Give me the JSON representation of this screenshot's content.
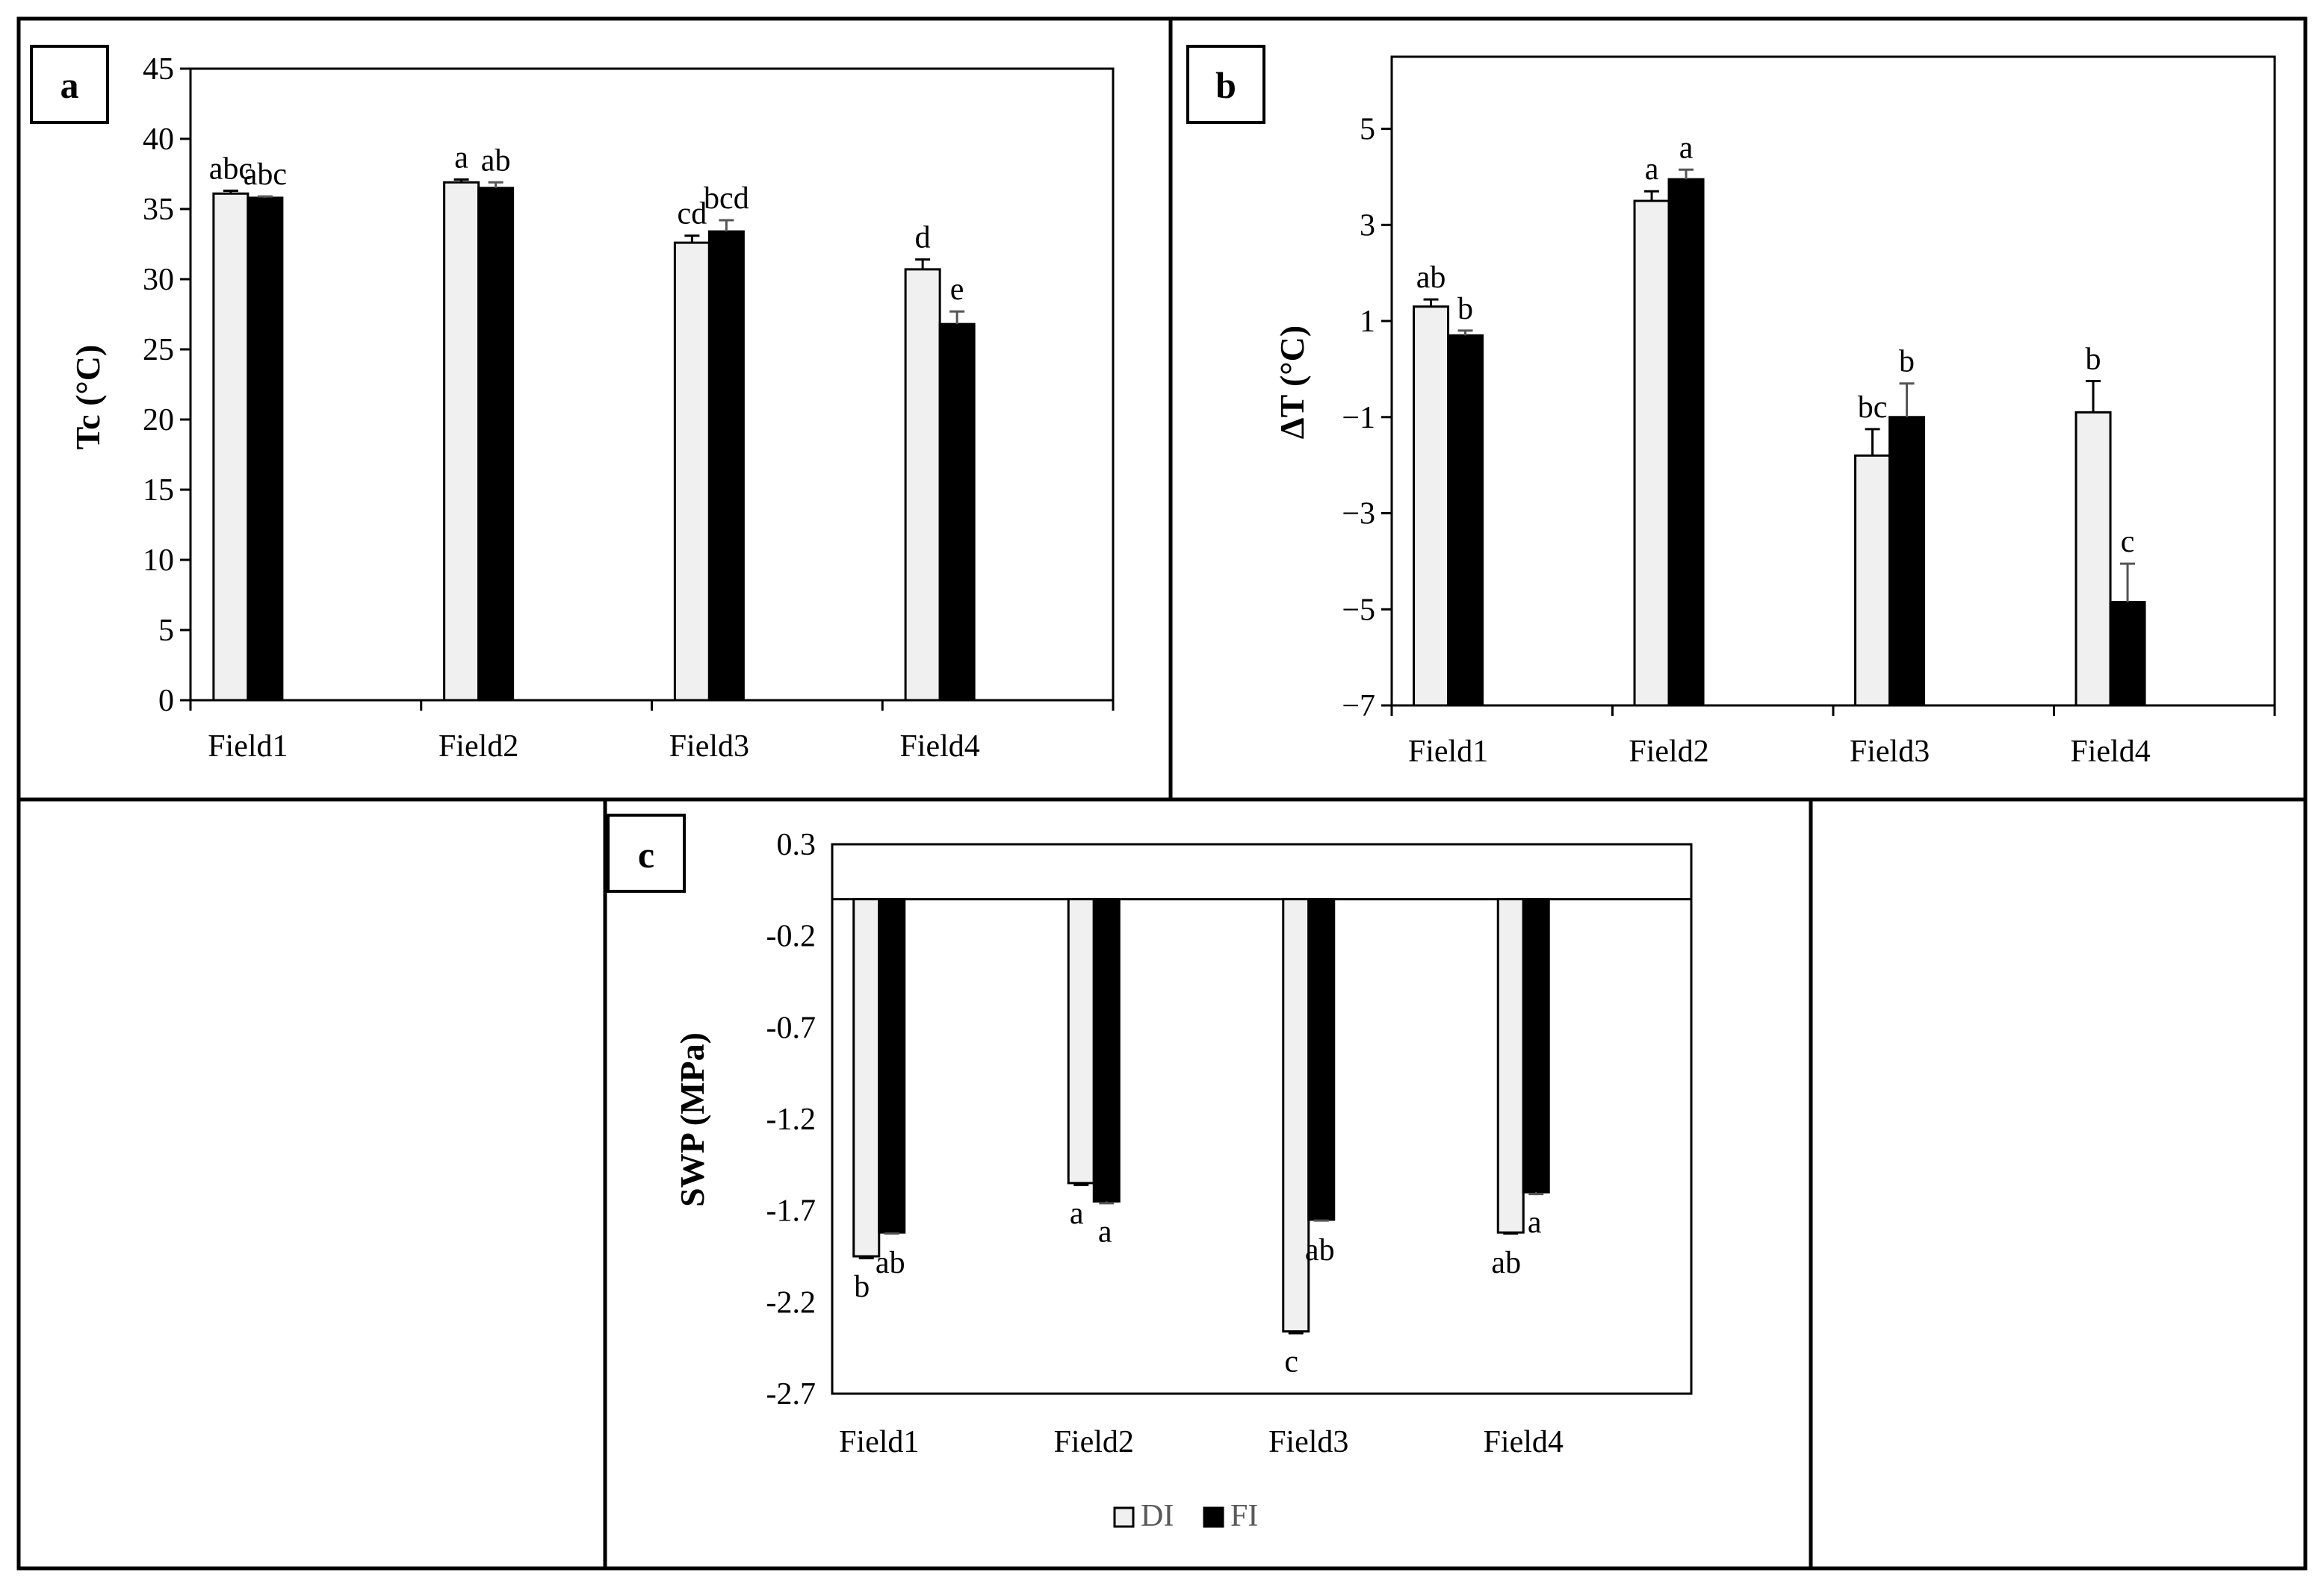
{
  "colors": {
    "di": "#f0f0f0",
    "fi": "#000000",
    "frame": "#000000",
    "text": "#000000",
    "legend_text": "#595959"
  },
  "legend": [
    {
      "name": "DI"
    },
    {
      "name": "FI"
    }
  ],
  "chart_data": [
    {
      "panel": "a",
      "type": "bar",
      "title": "",
      "xlabel": "",
      "ylabel": "Tc (°C)",
      "ylim": [
        0,
        45
      ],
      "yticks": [
        0,
        5,
        10,
        15,
        20,
        25,
        30,
        35,
        40,
        45
      ],
      "tick_labels": [
        "0",
        "5",
        "10",
        "15",
        "20",
        "25",
        "30",
        "35",
        "40",
        "45"
      ],
      "categories": [
        "Field1",
        "Field2",
        "Field3",
        "Field4"
      ],
      "series": [
        {
          "name": "DI",
          "values": [
            36.1,
            36.9,
            32.6,
            30.7
          ],
          "errors": [
            0.2,
            0.2,
            0.5,
            0.7
          ],
          "labels": [
            "abc",
            "a",
            "cd",
            "d"
          ]
        },
        {
          "name": "FI",
          "values": [
            35.8,
            36.5,
            33.4,
            26.8
          ],
          "errors": [
            0.1,
            0.4,
            0.8,
            0.9
          ],
          "labels": [
            "abc",
            "ab",
            "bcd",
            "e"
          ]
        }
      ]
    },
    {
      "panel": "b",
      "type": "bar",
      "title": "",
      "xlabel": "",
      "ylabel": "ΔT (°C)",
      "ylim": [
        -7,
        6.5
      ],
      "yticks": [
        -7,
        -5,
        -3,
        -1,
        1,
        3,
        5
      ],
      "tick_labels": [
        "−7",
        "−5",
        "−3",
        "−1",
        "1",
        "3",
        "5"
      ],
      "categories": [
        "Field1",
        "Field2",
        "Field3",
        "Field4"
      ],
      "series": [
        {
          "name": "DI",
          "values": [
            1.3,
            3.5,
            -1.8,
            -0.9
          ],
          "errors": [
            0.15,
            0.2,
            0.55,
            0.65
          ],
          "labels": [
            "ab",
            "a",
            "bc",
            "b"
          ]
        },
        {
          "name": "FI",
          "values": [
            0.7,
            3.95,
            -1.0,
            -4.85
          ],
          "errors": [
            0.1,
            0.2,
            0.7,
            0.8
          ],
          "labels": [
            "b",
            "a",
            "b",
            "c"
          ]
        }
      ]
    },
    {
      "panel": "c",
      "type": "bar",
      "title": "",
      "xlabel": "",
      "ylabel": "SWP (MPa)",
      "ylim": [
        -2.7,
        0.3
      ],
      "yticks": [
        -2.7,
        -2.2,
        -1.7,
        -1.2,
        -0.7,
        -0.2,
        0.3
      ],
      "tick_labels": [
        "-2.7",
        "-2.2",
        "-1.7",
        "-1.2",
        "-0.7",
        "-0.2",
        "0.3"
      ],
      "categories": [
        "Field1",
        "Field2",
        "Field3",
        "Field4"
      ],
      "series": [
        {
          "name": "DI",
          "values": [
            -1.95,
            -1.55,
            -2.36,
            -1.82
          ],
          "errors": [
            0.01,
            0.01,
            0.01,
            0.005
          ],
          "labels": [
            "b",
            "a",
            "c",
            "ab"
          ]
        },
        {
          "name": "FI",
          "values": [
            -1.82,
            -1.65,
            -1.75,
            -1.6
          ],
          "errors": [
            0.005,
            0.01,
            0.005,
            0.01
          ],
          "labels": [
            "ab",
            "a",
            "ab",
            "a"
          ]
        }
      ]
    }
  ]
}
